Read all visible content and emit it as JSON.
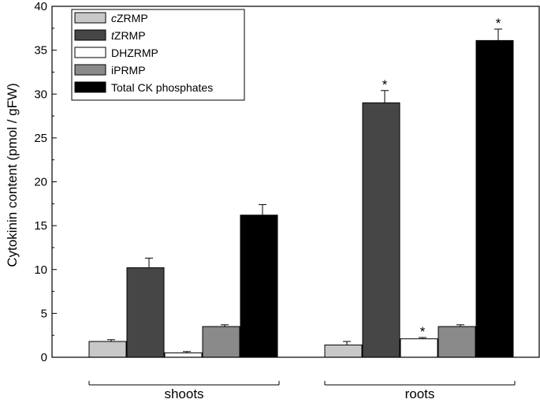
{
  "chart_data": {
    "type": "bar",
    "ylabel": "Cytokinin content (pmol / gFW)",
    "ylim": [
      0,
      40
    ],
    "yticks": [
      0,
      5,
      10,
      15,
      20,
      25,
      30,
      35,
      40
    ],
    "categories": [
      "shoots",
      "roots"
    ],
    "legend_position": "top-left",
    "grid": false,
    "series": [
      {
        "name_prefix": "c",
        "name_rest": "ZRMP",
        "color": "#c8c8c8",
        "values": [
          1.8,
          1.4
        ],
        "errors": [
          0.2,
          0.4
        ],
        "significant": [
          false,
          false
        ]
      },
      {
        "name_prefix": "t",
        "name_rest": "ZRMP",
        "color": "#464646",
        "values": [
          10.2,
          29.0
        ],
        "errors": [
          1.1,
          1.4
        ],
        "significant": [
          false,
          true
        ]
      },
      {
        "name_prefix": "",
        "name_rest": "DHZRMP",
        "color": "#ffffff",
        "values": [
          0.5,
          2.1
        ],
        "errors": [
          0.15,
          0.15
        ],
        "significant": [
          false,
          true
        ]
      },
      {
        "name_prefix": "",
        "name_rest": "iPRMP",
        "color": "#8a8a8a",
        "values": [
          3.5,
          3.5
        ],
        "errors": [
          0.2,
          0.2
        ],
        "significant": [
          false,
          false
        ]
      },
      {
        "name_prefix": "",
        "name_rest": "Total CK phosphates",
        "color": "#000000",
        "values": [
          16.2,
          36.1
        ],
        "errors": [
          1.2,
          1.3
        ],
        "significant": [
          false,
          true
        ]
      }
    ],
    "significance_marker": "*"
  }
}
